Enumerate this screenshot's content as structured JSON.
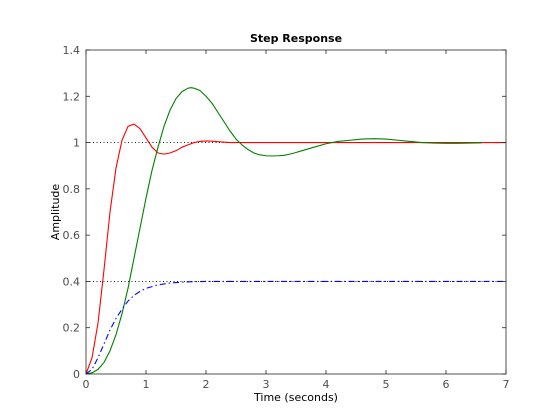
{
  "chart_data": {
    "type": "line",
    "title": "Step Response",
    "xlabel": "Time (seconds)",
    "ylabel": "Amplitude",
    "xlim": [
      0,
      7
    ],
    "ylim": [
      0,
      1.4
    ],
    "xticks": [
      "0",
      "1",
      "2",
      "3",
      "4",
      "5",
      "6",
      "7"
    ],
    "yticks": [
      "0",
      "0.2",
      "0.4",
      "0.6",
      "0.8",
      "1",
      "1.2",
      "1.4"
    ],
    "grid": false,
    "legend": "none",
    "reference_lines": [
      {
        "y": 1.0,
        "style": "dotted",
        "color": "#000000"
      },
      {
        "y": 0.4,
        "style": "dotted",
        "color": "#000000"
      }
    ],
    "series": [
      {
        "color": "#ff0000",
        "style": "solid",
        "x": [
          0,
          0.1,
          0.2,
          0.3,
          0.4,
          0.5,
          0.6,
          0.7,
          0.8,
          0.9,
          1.0,
          1.1,
          1.2,
          1.3,
          1.4,
          1.5,
          1.6,
          1.7,
          1.8,
          1.9,
          2.0,
          2.1,
          2.2,
          2.4,
          2.6,
          3.0,
          4.0,
          5.0,
          6.0,
          7.0
        ],
        "y": [
          0,
          0.07,
          0.22,
          0.45,
          0.7,
          0.89,
          1.01,
          1.07,
          1.08,
          1.06,
          1.02,
          0.98,
          0.955,
          0.95,
          0.955,
          0.965,
          0.98,
          0.99,
          1.0,
          1.005,
          1.007,
          1.006,
          1.004,
          1.0,
          1.0,
          1.0,
          1.0,
          1.0,
          1.0,
          1.0
        ]
      },
      {
        "color": "#008000",
        "style": "solid",
        "x": [
          0,
          0.1,
          0.2,
          0.3,
          0.4,
          0.5,
          0.6,
          0.7,
          0.8,
          0.9,
          1.0,
          1.1,
          1.2,
          1.3,
          1.4,
          1.5,
          1.6,
          1.7,
          1.75,
          1.8,
          1.9,
          2.0,
          2.1,
          2.2,
          2.3,
          2.4,
          2.5,
          2.6,
          2.7,
          2.8,
          2.9,
          3.0,
          3.1,
          3.2,
          3.3,
          3.4,
          3.5,
          3.6,
          3.8,
          4.0,
          4.2,
          4.4,
          4.6,
          4.8,
          5.0,
          5.2,
          5.4,
          5.6,
          5.8,
          6.0,
          6.2,
          6.4,
          6.6
        ],
        "y": [
          0,
          0.005,
          0.02,
          0.05,
          0.1,
          0.17,
          0.26,
          0.37,
          0.5,
          0.63,
          0.76,
          0.88,
          0.98,
          1.07,
          1.14,
          1.19,
          1.22,
          1.235,
          1.237,
          1.235,
          1.225,
          1.2,
          1.17,
          1.13,
          1.09,
          1.05,
          1.015,
          0.99,
          0.97,
          0.955,
          0.947,
          0.943,
          0.942,
          0.943,
          0.945,
          0.95,
          0.957,
          0.965,
          0.98,
          0.995,
          1.005,
          1.01,
          1.015,
          1.017,
          1.015,
          1.01,
          1.005,
          1.0,
          0.998,
          0.997,
          0.997,
          0.998,
          0.999
        ]
      },
      {
        "color": "#0000ff",
        "style": "dashdot",
        "x": [
          0,
          0.1,
          0.2,
          0.3,
          0.4,
          0.5,
          0.6,
          0.7,
          0.8,
          0.9,
          1.0,
          1.2,
          1.4,
          1.6,
          1.8,
          2.0,
          2.5,
          3.0,
          4.0,
          5.0,
          6.0,
          7.0
        ],
        "y": [
          0,
          0.02,
          0.07,
          0.13,
          0.19,
          0.24,
          0.28,
          0.315,
          0.34,
          0.357,
          0.37,
          0.385,
          0.393,
          0.397,
          0.399,
          0.4,
          0.4,
          0.4,
          0.4,
          0.4,
          0.4,
          0.4
        ]
      }
    ]
  }
}
